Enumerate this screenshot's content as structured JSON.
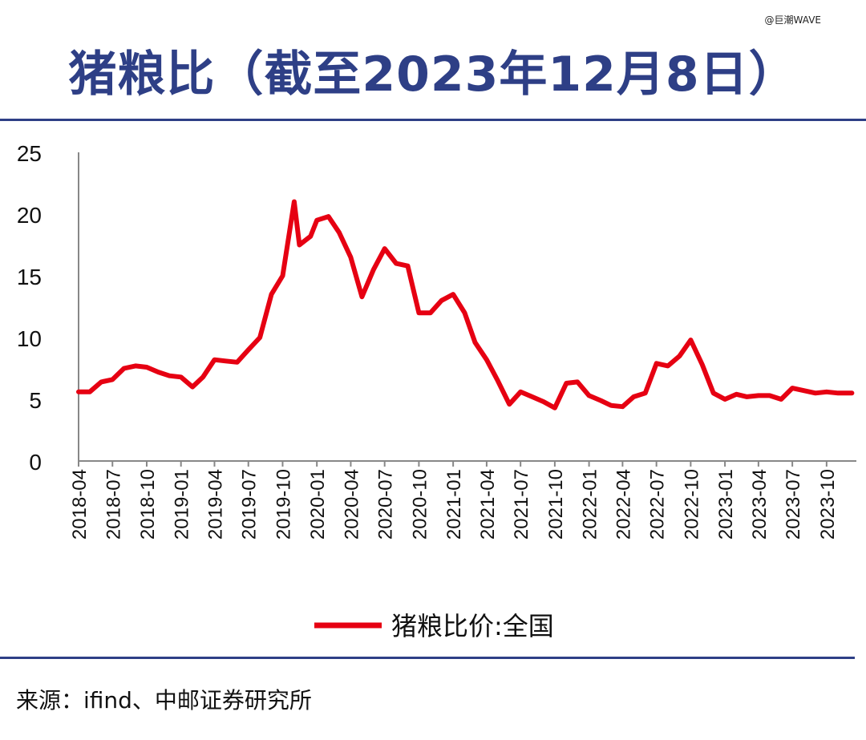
{
  "watermark": "@巨潮WAVE",
  "title": "猪粮比（截至2023年12月8日）",
  "source": "来源：ifind、中邮证券研究所",
  "colors": {
    "title": "#2e3f86",
    "rule": "#2e3f86",
    "line": "#e60012",
    "axis": "#888888",
    "text": "#111111"
  },
  "chart_data": {
    "type": "line",
    "title": "猪粮比（截至2023年12月8日）",
    "xlabel": "",
    "ylabel": "",
    "ylim": [
      0,
      25
    ],
    "y_ticks": [
      0,
      5,
      10,
      15,
      20,
      25
    ],
    "x_ticks": [
      "2018-04",
      "2018-07",
      "2018-10",
      "2019-01",
      "2019-04",
      "2019-07",
      "2019-10",
      "2020-01",
      "2020-04",
      "2020-07",
      "2020-10",
      "2021-01",
      "2021-04",
      "2021-07",
      "2021-10",
      "2022-01",
      "2022-04",
      "2022-07",
      "2022-10",
      "2023-01",
      "2023-04",
      "2023-07",
      "2023-10"
    ],
    "grid": false,
    "legend": "bottom",
    "series": [
      {
        "name": "猪粮比价:全国",
        "color": "#e60012",
        "points": [
          [
            "2018-04-01",
            5.6
          ],
          [
            "2018-05-01",
            5.6
          ],
          [
            "2018-06-01",
            6.4
          ],
          [
            "2018-07-01",
            6.6
          ],
          [
            "2018-08-01",
            7.5
          ],
          [
            "2018-09-01",
            7.7
          ],
          [
            "2018-10-01",
            7.6
          ],
          [
            "2018-11-01",
            7.2
          ],
          [
            "2018-12-01",
            6.9
          ],
          [
            "2019-01-01",
            6.8
          ],
          [
            "2019-02-01",
            6.0
          ],
          [
            "2019-03-01",
            6.8
          ],
          [
            "2019-04-01",
            8.2
          ],
          [
            "2019-05-01",
            8.1
          ],
          [
            "2019-06-01",
            8.0
          ],
          [
            "2019-07-01",
            9.0
          ],
          [
            "2019-08-01",
            10.0
          ],
          [
            "2019-09-01",
            13.5
          ],
          [
            "2019-10-01",
            15.0
          ],
          [
            "2019-11-01",
            21.0
          ],
          [
            "2019-11-15",
            17.5
          ],
          [
            "2019-12-15",
            18.2
          ],
          [
            "2020-01-01",
            19.5
          ],
          [
            "2020-02-01",
            19.8
          ],
          [
            "2020-03-01",
            18.5
          ],
          [
            "2020-04-01",
            16.5
          ],
          [
            "2020-05-01",
            13.3
          ],
          [
            "2020-06-01",
            15.5
          ],
          [
            "2020-07-01",
            17.2
          ],
          [
            "2020-08-01",
            16.0
          ],
          [
            "2020-09-01",
            15.8
          ],
          [
            "2020-10-01",
            12.0
          ],
          [
            "2020-11-01",
            12.0
          ],
          [
            "2020-12-01",
            13.0
          ],
          [
            "2021-01-01",
            13.5
          ],
          [
            "2021-02-01",
            12.0
          ],
          [
            "2021-03-01",
            9.6
          ],
          [
            "2021-04-01",
            8.2
          ],
          [
            "2021-05-01",
            6.5
          ],
          [
            "2021-06-01",
            4.6
          ],
          [
            "2021-07-01",
            5.6
          ],
          [
            "2021-08-01",
            5.2
          ],
          [
            "2021-09-01",
            4.8
          ],
          [
            "2021-10-01",
            4.3
          ],
          [
            "2021-11-01",
            6.3
          ],
          [
            "2021-12-01",
            6.4
          ],
          [
            "2022-01-01",
            5.3
          ],
          [
            "2022-02-01",
            4.9
          ],
          [
            "2022-03-01",
            4.5
          ],
          [
            "2022-04-01",
            4.4
          ],
          [
            "2022-05-01",
            5.2
          ],
          [
            "2022-06-01",
            5.5
          ],
          [
            "2022-07-01",
            7.9
          ],
          [
            "2022-08-01",
            7.7
          ],
          [
            "2022-09-01",
            8.5
          ],
          [
            "2022-10-01",
            9.8
          ],
          [
            "2022-11-01",
            7.8
          ],
          [
            "2022-12-01",
            5.5
          ],
          [
            "2023-01-01",
            5.0
          ],
          [
            "2023-02-01",
            5.4
          ],
          [
            "2023-03-01",
            5.2
          ],
          [
            "2023-04-01",
            5.3
          ],
          [
            "2023-05-01",
            5.3
          ],
          [
            "2023-06-01",
            5.0
          ],
          [
            "2023-07-01",
            5.9
          ],
          [
            "2023-08-01",
            5.7
          ],
          [
            "2023-09-01",
            5.5
          ],
          [
            "2023-10-01",
            5.6
          ],
          [
            "2023-11-01",
            5.5
          ],
          [
            "2023-12-08",
            5.5
          ]
        ]
      }
    ]
  }
}
